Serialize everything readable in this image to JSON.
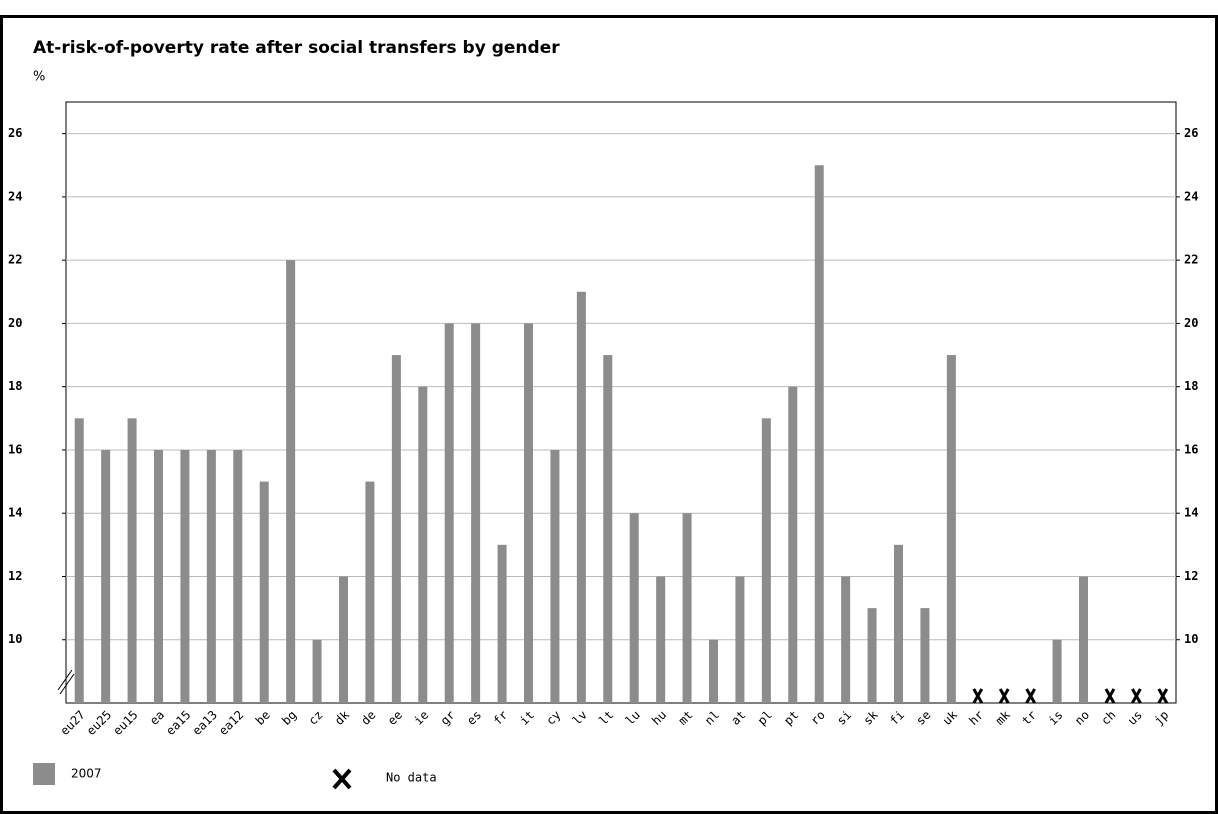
{
  "chart_data": {
    "type": "bar",
    "title": "At-risk-of-poverty rate after social transfers by gender",
    "y_label": "%",
    "categories": [
      "eu27",
      "eu25",
      "eu15",
      "ea",
      "ea15",
      "ea13",
      "ea12",
      "be",
      "bg",
      "cz",
      "dk",
      "de",
      "ee",
      "ie",
      "gr",
      "es",
      "fr",
      "it",
      "cy",
      "lv",
      "lt",
      "lu",
      "hu",
      "mt",
      "nl",
      "at",
      "pl",
      "pt",
      "ro",
      "si",
      "sk",
      "fi",
      "se",
      "uk",
      "hr",
      "mk",
      "tr",
      "is",
      "no",
      "ch",
      "us",
      "jp"
    ],
    "series": [
      {
        "name": "2007",
        "color": "#8c8c8c",
        "values": [
          17,
          16,
          17,
          16,
          16,
          16,
          16,
          15,
          22,
          10,
          12,
          15,
          19,
          18,
          20,
          20,
          13,
          20,
          16,
          21,
          19,
          14,
          12,
          14,
          10,
          12,
          17,
          18,
          25,
          12,
          11,
          13,
          11,
          19,
          null,
          null,
          null,
          10,
          12,
          null,
          null,
          null
        ]
      }
    ],
    "no_data_label": "No data",
    "ylim": [
      8,
      27
    ],
    "yticks": [
      10,
      12,
      14,
      16,
      18,
      20,
      22,
      24,
      26
    ],
    "grid": true
  }
}
